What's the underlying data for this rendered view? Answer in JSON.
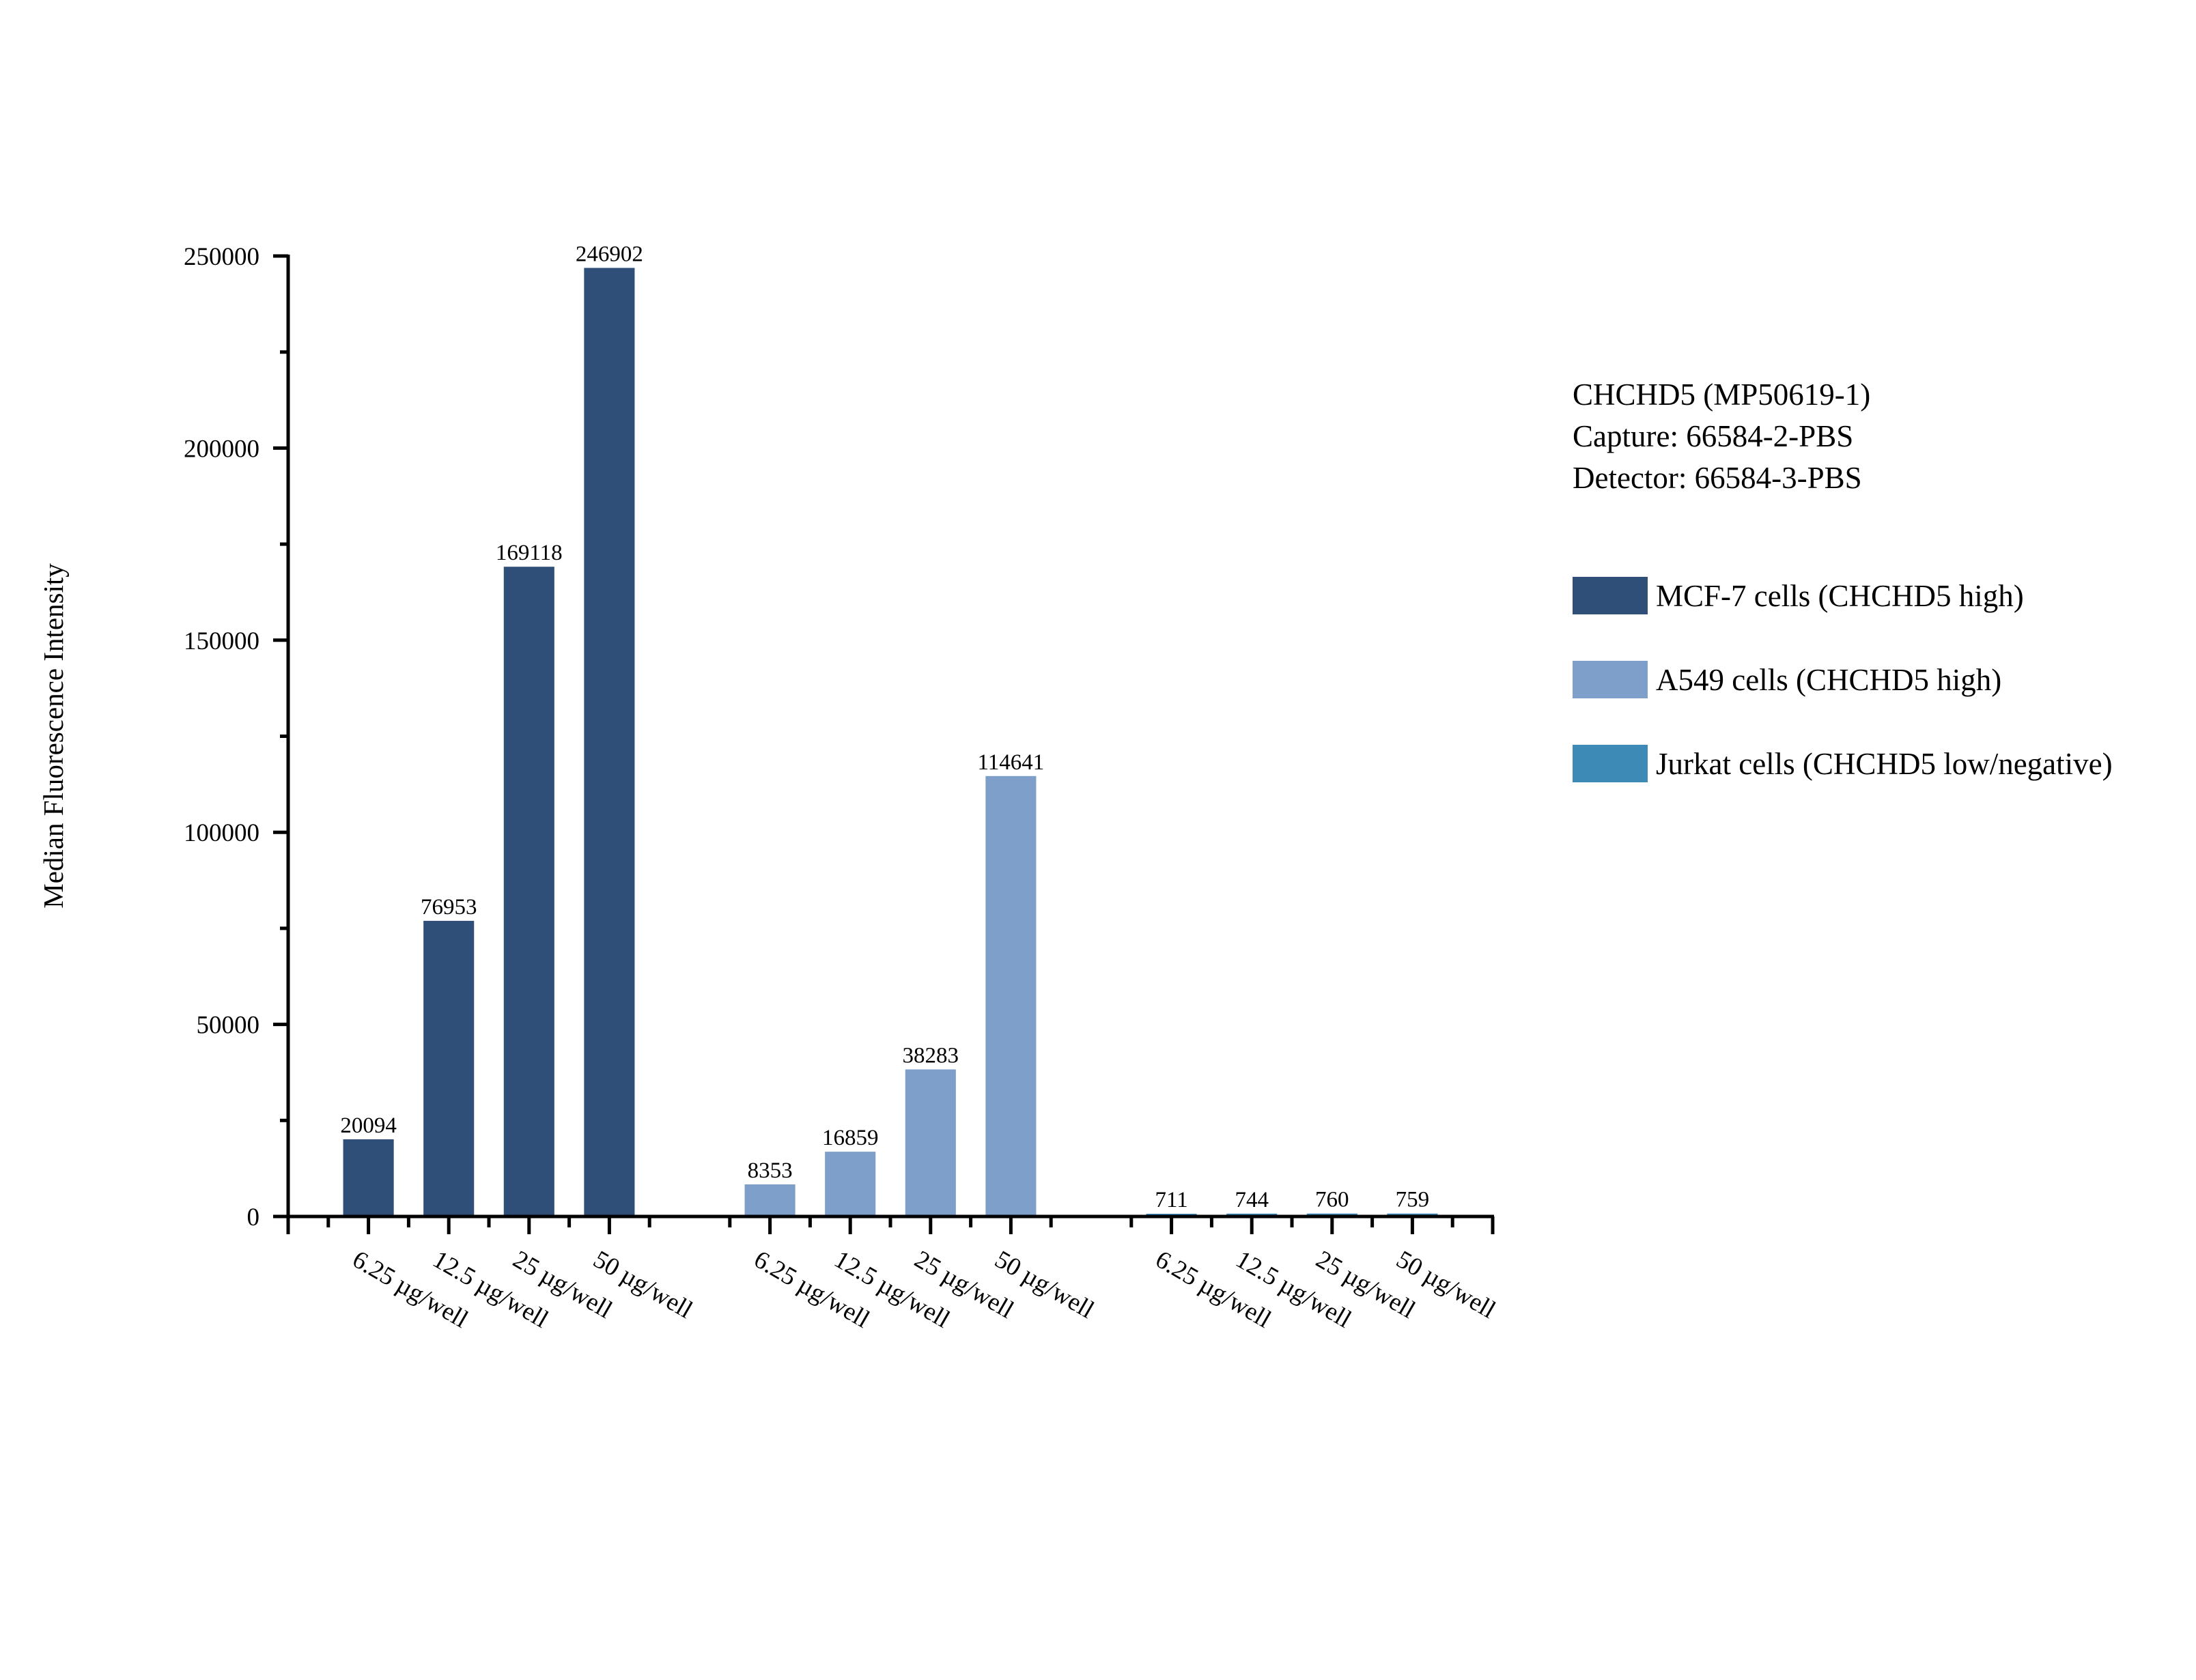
{
  "chart_data": {
    "type": "bar",
    "title": "",
    "ylabel": "Median Fluorescence Intensity",
    "xlabel": "",
    "ylim": [
      0,
      250000
    ],
    "yticks": [
      0,
      50000,
      100000,
      150000,
      200000,
      250000
    ],
    "ytick_labels": [
      "0",
      "50000",
      "100000",
      "150000",
      "200000",
      "250000"
    ],
    "grid": false,
    "legend_placement": "right",
    "annotation": [
      "CHCHD5 (MP50619-1)",
      "Capture: 66584-2-PBS",
      "Detector: 66584-3-PBS"
    ],
    "categories": [
      "6.25 µg/well",
      "12.5 µg/well",
      "25 µg/well",
      "50 µg/well"
    ],
    "series": [
      {
        "name": "MCF-7 cells (CHCHD5 high)",
        "color": "#2F4E78",
        "values": [
          20094,
          76953,
          169118,
          246902
        ]
      },
      {
        "name": "A549 cells (CHCHD5 high)",
        "color": "#7F9FCB",
        "values": [
          8353,
          16859,
          38283,
          114641
        ]
      },
      {
        "name": "Jurkat cells (CHCHD5 low/negative)",
        "color": "#3E8AB7",
        "values": [
          711,
          744,
          760,
          759
        ]
      }
    ]
  }
}
